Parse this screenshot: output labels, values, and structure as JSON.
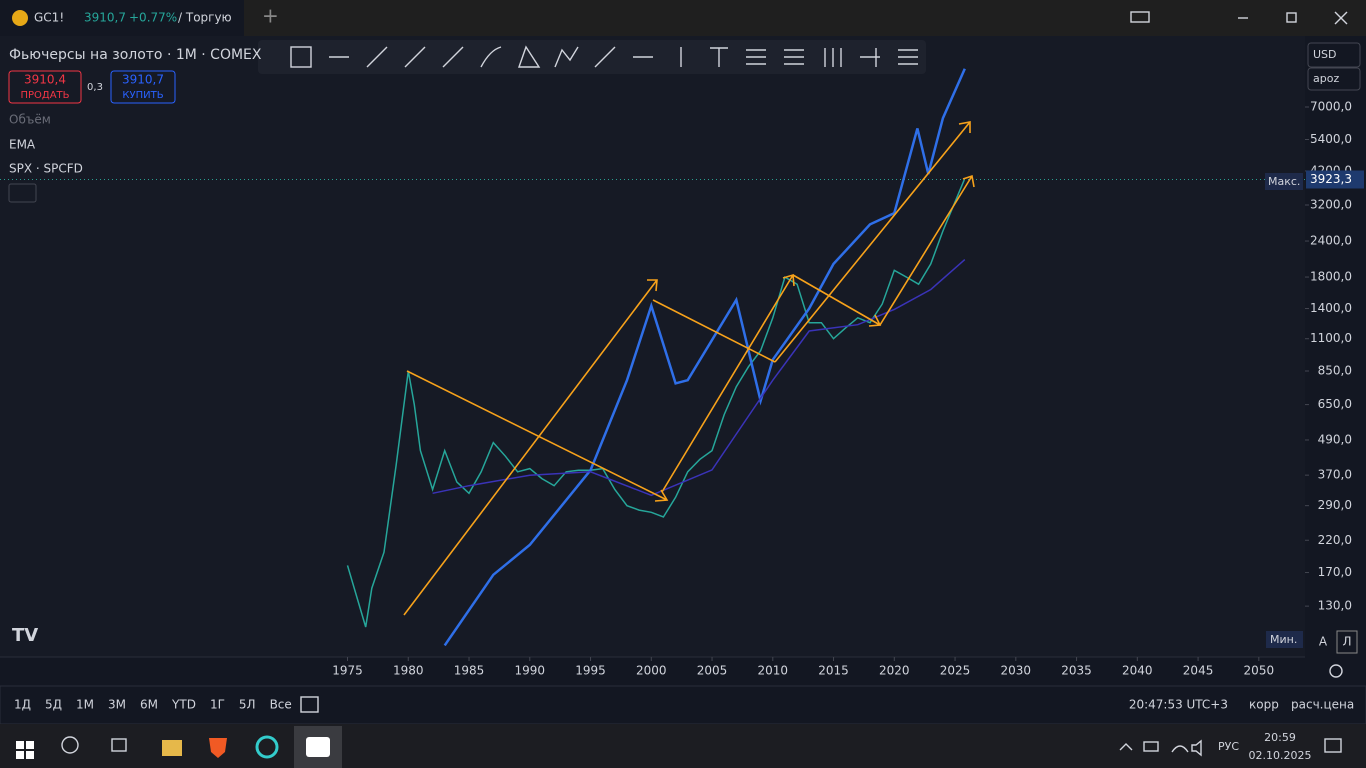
{
  "ui": {
    "tab": {
      "symbol": "GC1!",
      "price": "3910,7",
      "change": "+0.77%",
      "rest": "/ Торгую"
    },
    "header": {
      "title": "Фьючерсы на золото · 1M · COMEX",
      "sell_price": "3910,4",
      "sell_label": "ПРОДАТЬ",
      "spread": "0,3",
      "buy_price": "3910,7",
      "buy_label": "КУПИТЬ"
    },
    "volume": "Объём",
    "currency": "USD",
    "scale_mode": "apoz",
    "max_label": "Макс.",
    "min_label": "Мин.",
    "scale_buttons": [
      "A",
      "Л"
    ],
    "ranges": [
      "1Д",
      "5Д",
      "1М",
      "3М",
      "6М",
      "YTD",
      "1Г",
      "5Л",
      "Все"
    ],
    "clock": "20:47:53 UTC+3",
    "adj": "корр",
    "settlement": "расч.цена",
    "taskbar": {
      "lang": "РУС",
      "time": "20:59",
      "date": "02.10.2025"
    }
  },
  "chart_data": {
    "type": "line",
    "log_scale": true,
    "xlim": [
      1946.4,
      2053.8
    ],
    "xticks": [
      1975,
      1980,
      1985,
      1990,
      1995,
      2000,
      2005,
      2010,
      2015,
      2020,
      2025,
      2030,
      2035,
      2040,
      2045,
      2050
    ],
    "ylim": [
      86.6,
      12340
    ],
    "yticks": [
      {
        "value": 130,
        "label": "130,0"
      },
      {
        "value": 170,
        "label": "170,0"
      },
      {
        "value": 220,
        "label": "220,0"
      },
      {
        "value": 290,
        "label": "290,0"
      },
      {
        "value": 370,
        "label": "370,0"
      },
      {
        "value": 490,
        "label": "490,0"
      },
      {
        "value": 650,
        "label": "650,0"
      },
      {
        "value": 850,
        "label": "850,0"
      },
      {
        "value": 1100,
        "label": "1100,0"
      },
      {
        "value": 1400,
        "label": "1400,0"
      },
      {
        "value": 1800,
        "label": "1800,0"
      },
      {
        "value": 2400,
        "label": "2400,0"
      },
      {
        "value": 3200,
        "label": "3200,0"
      },
      {
        "value": 4200,
        "label": "4200,0"
      },
      {
        "value": 5400,
        "label": "5400,0"
      },
      {
        "value": 7000,
        "label": "7000,0"
      }
    ],
    "max": {
      "value": 3923.3,
      "label": "3923,3"
    },
    "series": [
      {
        "color": "#26a69a",
        "x": [
          1975,
          1976.5,
          1977,
          1978,
          1979,
          1980,
          1980.5,
          1981,
          1982,
          1983,
          1984,
          1985,
          1986,
          1987,
          1988,
          1989,
          1990,
          1991,
          1992,
          1993,
          1994,
          1995,
          1996,
          1997,
          1998,
          1999,
          2000,
          2001,
          2002,
          2003,
          2004,
          2005,
          2006,
          2007,
          2008,
          2009,
          2010,
          2011,
          2012,
          2013,
          2014,
          2015,
          2016,
          2017,
          2018,
          2019,
          2020,
          2021,
          2022,
          2023,
          2024,
          2025.75
        ],
        "values": [
          180,
          110,
          150,
          200,
          400,
          850,
          650,
          450,
          330,
          450,
          350,
          320,
          380,
          480,
          430,
          380,
          390,
          360,
          340,
          380,
          385,
          385,
          390,
          330,
          290,
          280,
          275,
          265,
          310,
          380,
          420,
          450,
          600,
          750,
          880,
          1000,
          1300,
          1800,
          1700,
          1250,
          1250,
          1100,
          1200,
          1300,
          1250,
          1450,
          1900,
          1800,
          1700,
          2000,
          2600,
          3910
        ]
      },
      {
        "name": "SPX · SPCFD",
        "color": "#2f6fe8",
        "x": [
          1983,
          1987,
          1990,
          1995,
          1998,
          2000,
          2002,
          2003,
          2007,
          2009,
          2010,
          2013,
          2015,
          2018,
          2020,
          2021.9,
          2022.8,
          2024,
          2025.8
        ],
        "values": [
          95,
          167,
          212,
          385,
          790,
          1430,
          770,
          790,
          1500,
          670,
          930,
          1400,
          2000,
          2740,
          3000,
          5900,
          4100,
          6400,
          9500
        ]
      },
      {
        "name": "EMA",
        "color": "#3a33b8",
        "x": [
          1982,
          1985,
          1990,
          1995,
          2000,
          2005,
          2010,
          2013,
          2017,
          2020,
          2023,
          2025.8
        ],
        "values": [
          320,
          340,
          370,
          380,
          315,
          386,
          790,
          1170,
          1230,
          1390,
          1630,
          2070
        ]
      }
    ]
  }
}
